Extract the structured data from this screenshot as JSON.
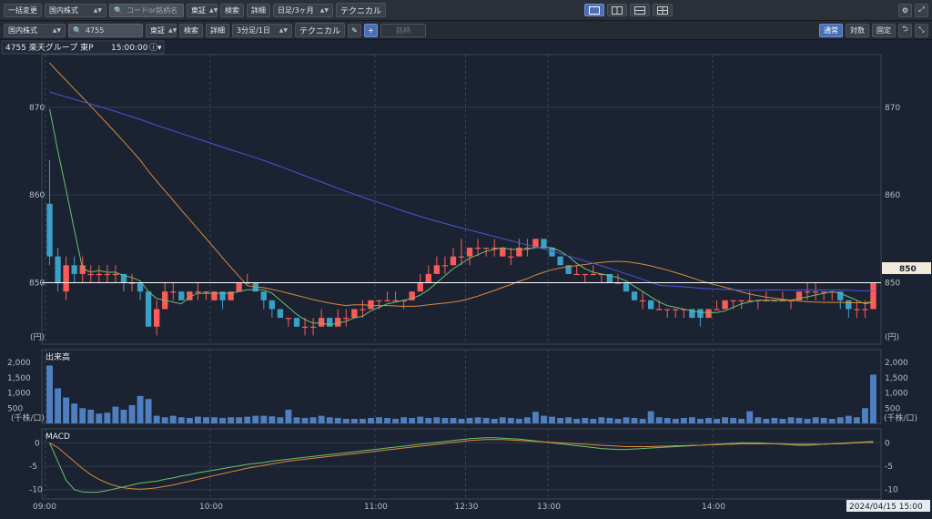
{
  "toolbar1": {
    "bulk_change": "一括変更",
    "market": "国内株式",
    "search_placeholder": "コードor銘柄名",
    "exchange": "東証",
    "search": "検索",
    "detail": "詳細",
    "period": "日足/3ヶ月",
    "technical": "テクニカル",
    "layouts": [
      "single-layout-icon",
      "two-column-layout-icon",
      "two-row-layout-icon",
      "four-grid-layout-icon"
    ]
  },
  "toolbar2": {
    "market": "国内株式",
    "code": "4755",
    "exchange": "東証",
    "search": "検索",
    "detail": "詳細",
    "period": "3分足/1日",
    "technical": "テクニカル",
    "compare": "銘柄",
    "mode_normal": "通常",
    "mode_log": "対数",
    "mode_fixed": "固定"
  },
  "chart_header": {
    "label": "4755 楽天グループ 東P",
    "time": "15:00:00"
  },
  "colors": {
    "up": "#ff5a5a",
    "down": "#3aa0c8",
    "ma_short": "#6cc06c",
    "ma_mid": "#d98a3a",
    "ma_long": "#4a55d8",
    "volume": "#4f7fc0",
    "macd": "#6cc06c",
    "signal": "#d98a3a",
    "price_line": "#ffffff"
  },
  "price_panel": {
    "unit": "(円)",
    "current_price": "850"
  },
  "volume_panel": {
    "title": "出来高",
    "unit": "(千株/口)"
  },
  "macd_panel": {
    "title": "MACD"
  },
  "time_axis": {
    "date_label": "2024/04/15 15:00"
  },
  "chart_data": [
    {
      "type": "candlestick",
      "ylim": [
        843,
        876
      ],
      "yticks": [
        850,
        860,
        870
      ],
      "unit": "(円)",
      "xticks": [
        "09:00",
        "10:00",
        "11:00",
        "12:30",
        "13:00",
        "14:00"
      ],
      "current_price": 850,
      "ohlc": [
        [
          859,
          864,
          852,
          853
        ],
        [
          853,
          854,
          849,
          850
        ],
        [
          849,
          853,
          848,
          852
        ],
        [
          852,
          853,
          850,
          851
        ],
        [
          851,
          853,
          850,
          852
        ],
        [
          851,
          852,
          850,
          851
        ],
        [
          851,
          852,
          850,
          851
        ],
        [
          851,
          852,
          850,
          851
        ],
        [
          851,
          852,
          850,
          851
        ],
        [
          851,
          851,
          849,
          850
        ],
        [
          850,
          851,
          849,
          850
        ],
        [
          850,
          850,
          848,
          849
        ],
        [
          849,
          849,
          845,
          845
        ],
        [
          845,
          848,
          844,
          847
        ],
        [
          847,
          850,
          847,
          849
        ],
        [
          849,
          850,
          848,
          849
        ],
        [
          849,
          849,
          848,
          848
        ],
        [
          848,
          849,
          848,
          849
        ],
        [
          849,
          850,
          848,
          849
        ],
        [
          849,
          849,
          848,
          849
        ],
        [
          848,
          849,
          848,
          849
        ],
        [
          849,
          849,
          847,
          848
        ],
        [
          848,
          849,
          848,
          849
        ],
        [
          849,
          850,
          849,
          850
        ],
        [
          850,
          851,
          850,
          850
        ],
        [
          850,
          850,
          849,
          849
        ],
        [
          849,
          849,
          847,
          848
        ],
        [
          848,
          848,
          846,
          847
        ],
        [
          847,
          847,
          846,
          846
        ],
        [
          846,
          846,
          845,
          846
        ],
        [
          846,
          846,
          845,
          845
        ],
        [
          845,
          846,
          844,
          845
        ],
        [
          845,
          846,
          844,
          845
        ],
        [
          845,
          847,
          845,
          846
        ],
        [
          846,
          846,
          845,
          845
        ],
        [
          845,
          847,
          845,
          846
        ],
        [
          846,
          847,
          845,
          846
        ],
        [
          846,
          847,
          846,
          847
        ],
        [
          847,
          848,
          846,
          847
        ],
        [
          847,
          848,
          847,
          848
        ],
        [
          848,
          848,
          847,
          848
        ],
        [
          848,
          849,
          848,
          848
        ],
        [
          848,
          849,
          848,
          848
        ],
        [
          848,
          848,
          847,
          848
        ],
        [
          848,
          849,
          848,
          849
        ],
        [
          849,
          851,
          849,
          850
        ],
        [
          850,
          852,
          850,
          851
        ],
        [
          851,
          853,
          851,
          852
        ],
        [
          852,
          853,
          851,
          852
        ],
        [
          852,
          854,
          852,
          853
        ],
        [
          853,
          855,
          852,
          853
        ],
        [
          853,
          854,
          852,
          854
        ],
        [
          854,
          855,
          853,
          854
        ],
        [
          854,
          854,
          853,
          854
        ],
        [
          854,
          855,
          853,
          854
        ],
        [
          853,
          854,
          853,
          854
        ],
        [
          853,
          854,
          852,
          853
        ],
        [
          853,
          855,
          853,
          854
        ],
        [
          854,
          855,
          853,
          854
        ],
        [
          854,
          855,
          854,
          855
        ],
        [
          855,
          855,
          854,
          854
        ],
        [
          854,
          854,
          853,
          853
        ],
        [
          853,
          853,
          852,
          852
        ],
        [
          852,
          852,
          851,
          851
        ],
        [
          851,
          852,
          851,
          851
        ],
        [
          851,
          851,
          850,
          851
        ],
        [
          851,
          852,
          851,
          851
        ],
        [
          851,
          851,
          850,
          851
        ],
        [
          851,
          851,
          850,
          850
        ],
        [
          850,
          851,
          850,
          850
        ],
        [
          850,
          850,
          849,
          849
        ],
        [
          849,
          849,
          848,
          848
        ],
        [
          848,
          849,
          847,
          848
        ],
        [
          848,
          848,
          847,
          847
        ],
        [
          847,
          848,
          847,
          847
        ],
        [
          847,
          847,
          846,
          847
        ],
        [
          847,
          847,
          846,
          847
        ],
        [
          847,
          847,
          846,
          847
        ],
        [
          847,
          847,
          846,
          846
        ],
        [
          847,
          847,
          845,
          846
        ],
        [
          846,
          847,
          846,
          847
        ],
        [
          847,
          848,
          847,
          847
        ],
        [
          847,
          848,
          847,
          848
        ],
        [
          848,
          848,
          847,
          848
        ],
        [
          848,
          848,
          847,
          848
        ],
        [
          848,
          849,
          848,
          848
        ],
        [
          848,
          848,
          847,
          848
        ],
        [
          848,
          849,
          848,
          848
        ],
        [
          848,
          848,
          848,
          848
        ],
        [
          848,
          849,
          848,
          848
        ],
        [
          848,
          848,
          847,
          848
        ],
        [
          848,
          849,
          848,
          849
        ],
        [
          849,
          850,
          848,
          849
        ],
        [
          849,
          850,
          848,
          849
        ],
        [
          849,
          849,
          848,
          849
        ],
        [
          849,
          849,
          848,
          849
        ],
        [
          849,
          849,
          847,
          848
        ],
        [
          848,
          848,
          846,
          847
        ],
        [
          847,
          848,
          846,
          847
        ],
        [
          847,
          848,
          846,
          847
        ],
        [
          847,
          850,
          847,
          850
        ]
      ]
    },
    {
      "type": "bar",
      "title": "出来高",
      "unit": "(千株/口)",
      "ylim": [
        0,
        2300
      ],
      "yticks": [
        500,
        1000,
        1500,
        2000
      ],
      "values": [
        1900,
        1150,
        850,
        650,
        500,
        450,
        320,
        350,
        550,
        450,
        600,
        900,
        800,
        250,
        200,
        250,
        200,
        180,
        220,
        200,
        200,
        180,
        200,
        200,
        220,
        250,
        250,
        230,
        200,
        450,
        200,
        180,
        200,
        250,
        200,
        180,
        150,
        150,
        150,
        180,
        200,
        180,
        150,
        200,
        180,
        220,
        180,
        200,
        180,
        180,
        150,
        180,
        200,
        180,
        150,
        200,
        180,
        150,
        200,
        380,
        250,
        220,
        180,
        200,
        150,
        180,
        150,
        200,
        180,
        150,
        200,
        180,
        150,
        400,
        200,
        180,
        150,
        180,
        200,
        150,
        180,
        150,
        200,
        180,
        150,
        400,
        200,
        150,
        180,
        150,
        200,
        180,
        150,
        200,
        180,
        150,
        200,
        250,
        200,
        500,
        1600
      ]
    },
    {
      "type": "line",
      "title": "MACD",
      "ylim": [
        -12,
        3
      ],
      "yticks": [
        0,
        -5,
        -10
      ],
      "series": [
        {
          "values": [
            0,
            -4,
            -8,
            -10,
            -10.5,
            -10.6,
            -10.5,
            -10.2,
            -9.8,
            -9.4,
            -9,
            -8.6,
            -8.4,
            -8.2,
            -7.8,
            -7.5,
            -7.1,
            -6.8,
            -6.4,
            -6.1,
            -5.8,
            -5.5,
            -5.2,
            -4.9,
            -4.6,
            -4.4,
            -4.2,
            -3.9,
            -3.7,
            -3.5,
            -3.3,
            -3.1,
            -2.9,
            -2.7,
            -2.5,
            -2.3,
            -2.1,
            -1.9,
            -1.7,
            -1.5,
            -1.3,
            -1.1,
            -0.9,
            -0.7,
            -0.5,
            -0.3,
            -0.1,
            0.1,
            0.3,
            0.5,
            0.7,
            0.9,
            1.0,
            1.1,
            1.1,
            1.0,
            0.9,
            0.8,
            0.6,
            0.4,
            0.2,
            0.0,
            -0.2,
            -0.4,
            -0.6,
            -0.8,
            -1.0,
            -1.2,
            -1.3,
            -1.4,
            -1.4,
            -1.3,
            -1.2,
            -1.1,
            -1.0,
            -0.9,
            -0.8,
            -0.7,
            -0.6,
            -0.5,
            -0.4,
            -0.3,
            -0.2,
            -0.1,
            0.0,
            0.0,
            0.0,
            -0.1,
            -0.2,
            -0.3,
            -0.4,
            -0.5,
            -0.5,
            -0.4,
            -0.3,
            -0.2,
            -0.1,
            0.0,
            0.1,
            0.2,
            0.3
          ]
        },
        {
          "values": [
            0,
            -1,
            -2.5,
            -4,
            -5.5,
            -6.8,
            -7.8,
            -8.6,
            -9.2,
            -9.6,
            -9.8,
            -9.9,
            -9.8,
            -9.6,
            -9.3,
            -9,
            -8.6,
            -8.2,
            -7.8,
            -7.4,
            -7,
            -6.6,
            -6.2,
            -5.8,
            -5.4,
            -5.1,
            -4.8,
            -4.5,
            -4.2,
            -3.9,
            -3.7,
            -3.5,
            -3.3,
            -3.1,
            -2.9,
            -2.7,
            -2.5,
            -2.3,
            -2.1,
            -1.9,
            -1.7,
            -1.5,
            -1.3,
            -1.1,
            -0.9,
            -0.7,
            -0.5,
            -0.3,
            -0.1,
            0.1,
            0.3,
            0.5,
            0.6,
            0.7,
            0.7,
            0.7,
            0.6,
            0.5,
            0.4,
            0.3,
            0.2,
            0.1,
            0.0,
            -0.1,
            -0.2,
            -0.3,
            -0.4,
            -0.5,
            -0.6,
            -0.7,
            -0.8,
            -0.8,
            -0.8,
            -0.8,
            -0.7,
            -0.7,
            -0.6,
            -0.6,
            -0.5,
            -0.5,
            -0.4,
            -0.4,
            -0.3,
            -0.3,
            -0.2,
            -0.2,
            -0.2,
            -0.2,
            -0.2,
            -0.2,
            -0.3,
            -0.3,
            -0.3,
            -0.3,
            -0.3,
            -0.2,
            -0.2,
            -0.1,
            0.0,
            0.1,
            0.1
          ]
        }
      ]
    }
  ]
}
